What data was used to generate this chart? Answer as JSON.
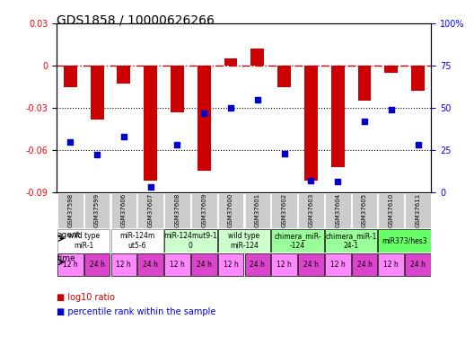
{
  "title": "GDS1858 / 10000626266",
  "samples": [
    "GSM37598",
    "GSM37599",
    "GSM37606",
    "GSM37607",
    "GSM37608",
    "GSM37609",
    "GSM37600",
    "GSM37601",
    "GSM37602",
    "GSM37603",
    "GSM37604",
    "GSM37605",
    "GSM37610",
    "GSM37611"
  ],
  "log10_ratio": [
    -0.015,
    -0.038,
    -0.013,
    -0.082,
    -0.033,
    -0.075,
    0.005,
    0.012,
    -0.015,
    -0.082,
    -0.072,
    -0.025,
    -0.005,
    -0.018
  ],
  "pct_rank": [
    30,
    22,
    33,
    3,
    28,
    47,
    50,
    55,
    23,
    7,
    6,
    42,
    49,
    28
  ],
  "agents": [
    {
      "label": "wild type\nmiR-1",
      "cols": [
        0,
        1
      ],
      "color": "white"
    },
    {
      "label": "miR-124m\nut5-6",
      "cols": [
        2,
        3
      ],
      "color": "white"
    },
    {
      "label": "miR-124mut9-1\n0",
      "cols": [
        4,
        5
      ],
      "color": "#ccffcc"
    },
    {
      "label": "wild type\nmiR-124",
      "cols": [
        6,
        7
      ],
      "color": "#ccffcc"
    },
    {
      "label": "chimera_miR-\n-124",
      "cols": [
        8,
        9
      ],
      "color": "#99ff99"
    },
    {
      "label": "chimera_miR-1\n24-1",
      "cols": [
        10,
        11
      ],
      "color": "#99ff99"
    },
    {
      "label": "miR373/hes3",
      "cols": [
        12,
        13
      ],
      "color": "#66ff66"
    }
  ],
  "times": [
    "12 h",
    "24 h",
    "12 h",
    "24 h",
    "12 h",
    "24 h",
    "12 h",
    "24 h",
    "12 h",
    "24 h",
    "12 h",
    "24 h",
    "12 h",
    "24 h"
  ],
  "ylim_left": [
    -0.09,
    0.03
  ],
  "ylim_right": [
    0,
    100
  ],
  "yticks_left": [
    -0.09,
    -0.06,
    -0.03,
    0,
    0.03
  ],
  "yticks_right": [
    0,
    25,
    50,
    75,
    100
  ],
  "bar_color": "#cc0000",
  "dot_color": "#0000cc",
  "zero_line_color": "#cc0000",
  "grid_color": "black",
  "sample_bg": "#cccccc"
}
